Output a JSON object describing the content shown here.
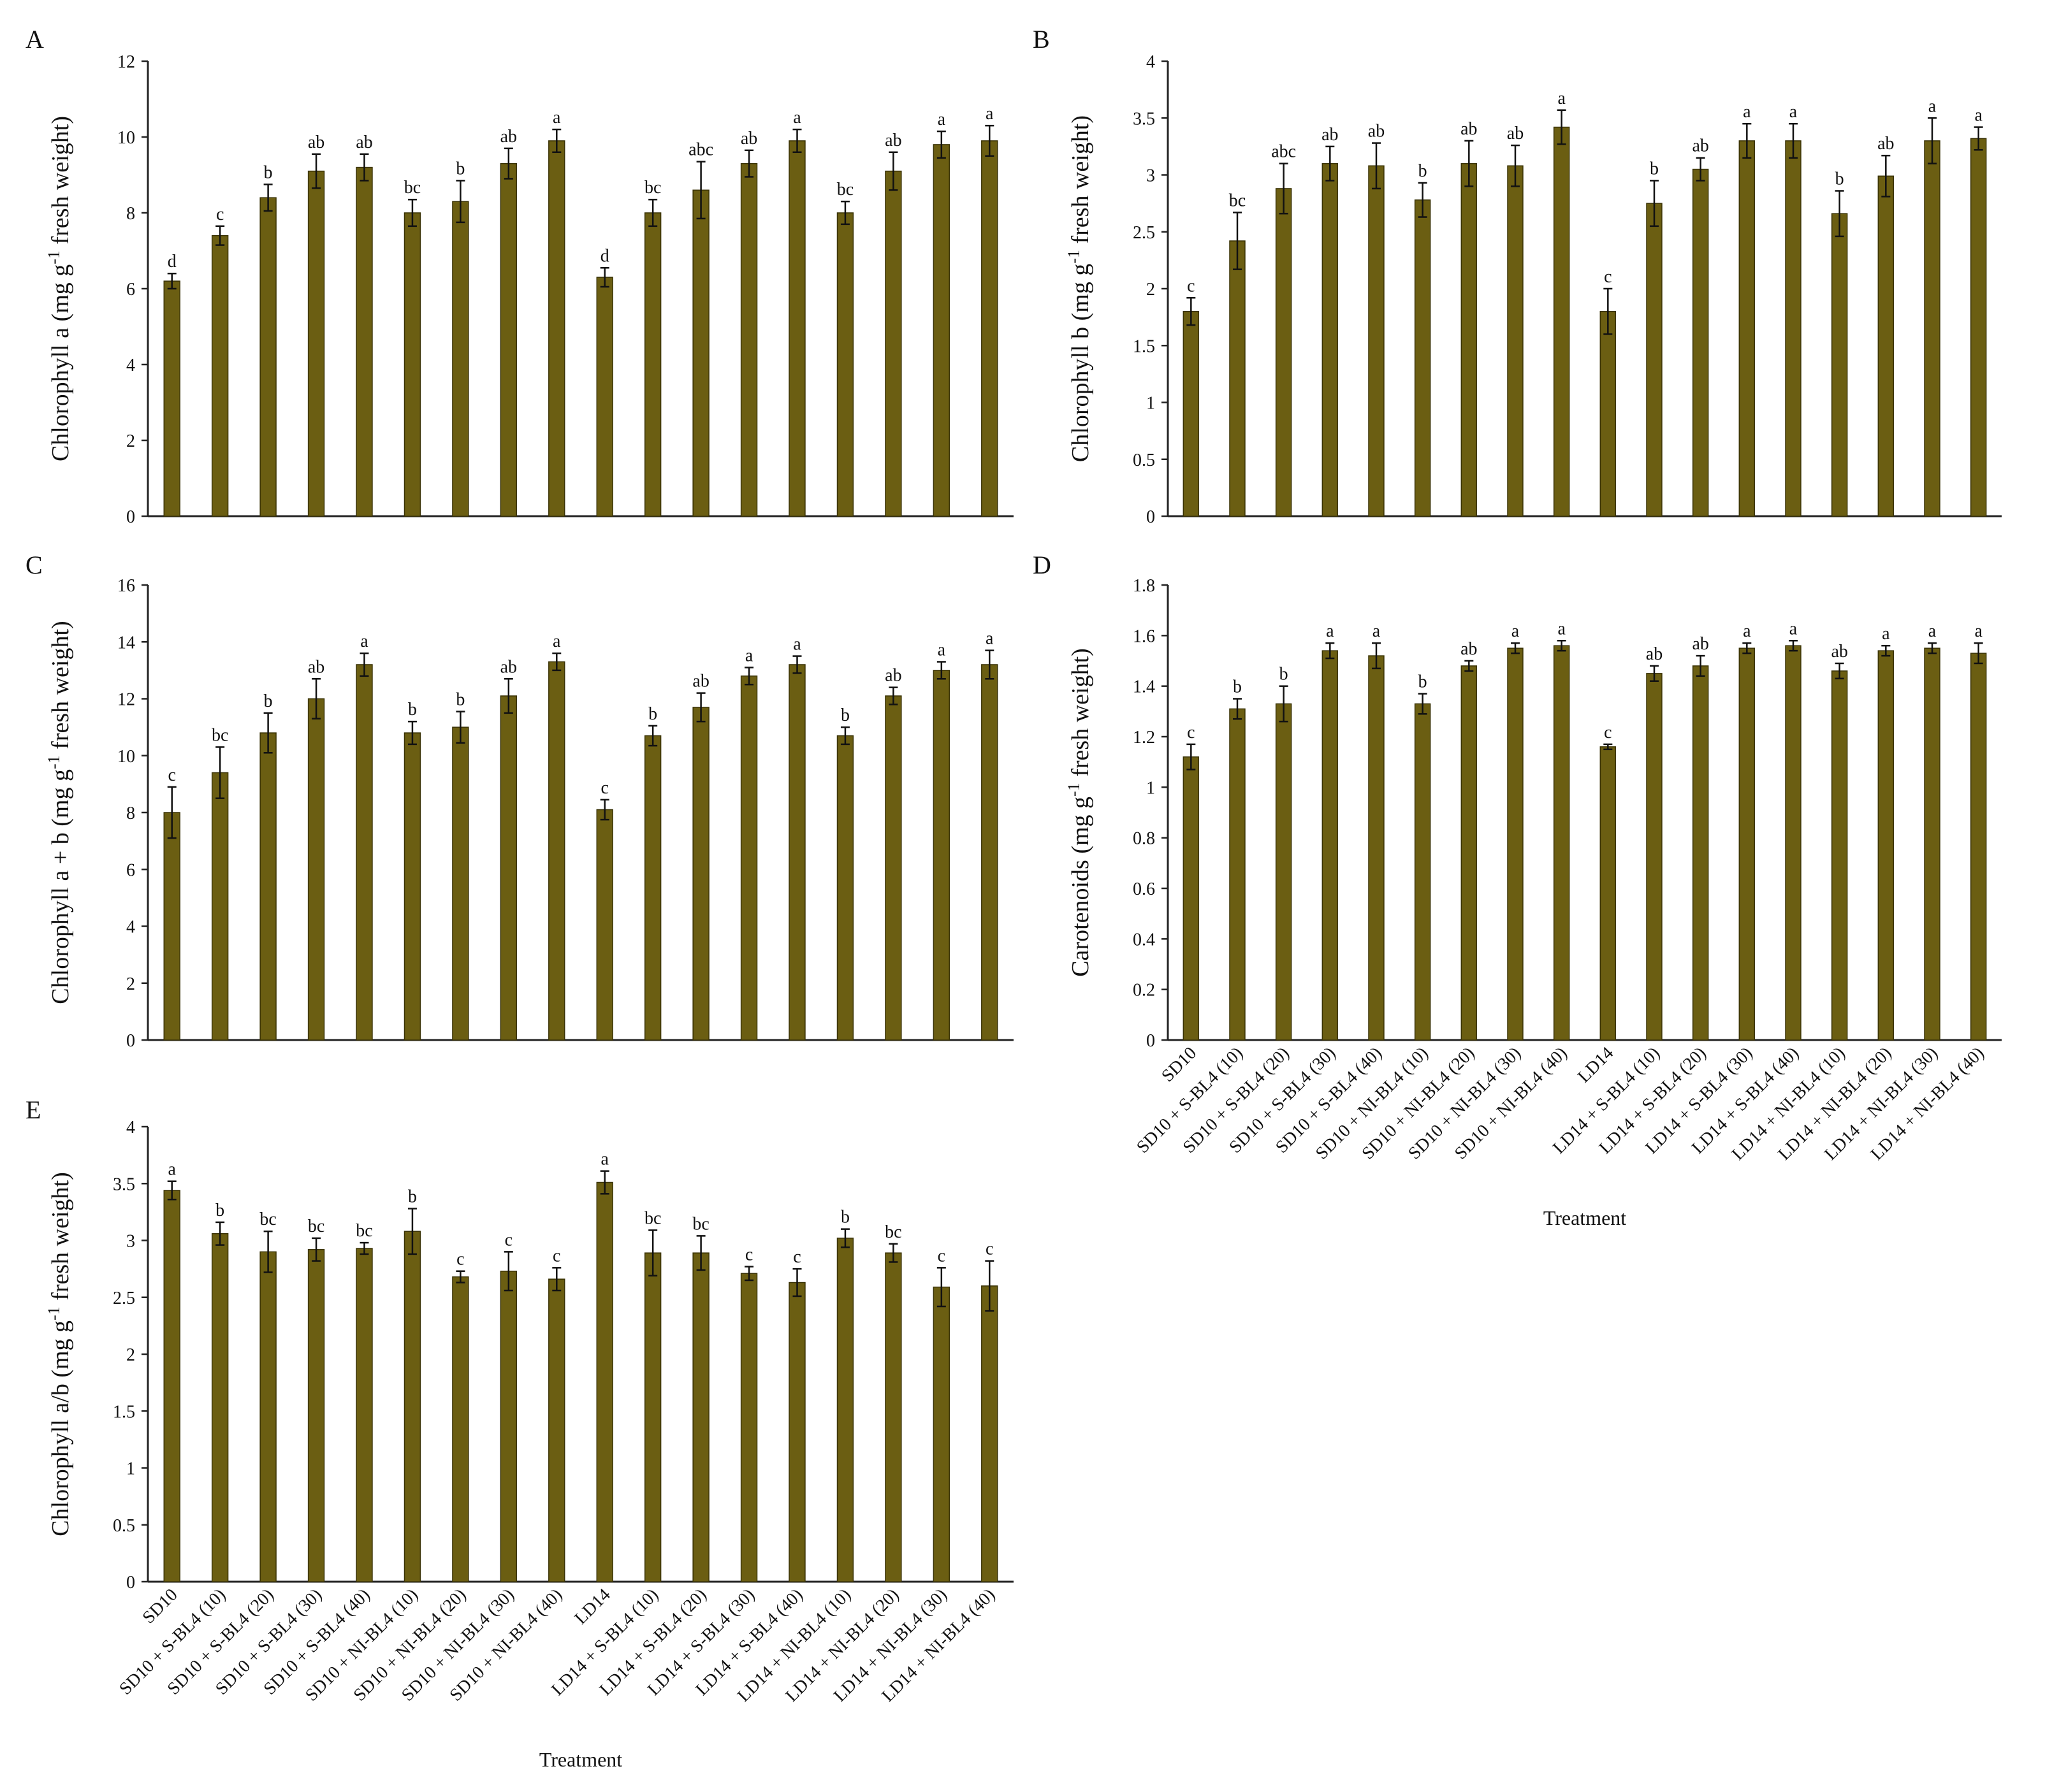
{
  "colors": {
    "bar": "#6b5e12",
    "bar_stroke": "#3a3306",
    "axis": "#222222"
  },
  "x_title": "Treatment",
  "categories": [
    "SD10",
    "SD10 + S-BL4 (10)",
    "SD10 + S-BL4 (20)",
    "SD10 + S-BL4 (30)",
    "SD10 + S-BL4 (40)",
    "SD10 + NI-BL4 (10)",
    "SD10 + NI-BL4 (20)",
    "SD10 + NI-BL4 (30)",
    "SD10 + NI-BL4 (40)",
    "LD14",
    "LD14 + S-BL4 (10)",
    "LD14 + S-BL4 (20)",
    "LD14 + S-BL4 (30)",
    "LD14 + S-BL4 (40)",
    "LD14 + NI-BL4 (10)",
    "LD14 + NI-BL4 (20)",
    "LD14 + NI-BL4 (30)",
    "LD14 + NI-BL4 (40)"
  ],
  "chart_data": [
    {
      "panel": "A",
      "type": "bar",
      "ylabel": "Chlorophyll a (mg g⁻¹ fresh weight)",
      "ylim": [
        0,
        12
      ],
      "yticks": [
        0,
        2,
        4,
        6,
        8,
        10,
        12
      ],
      "values": [
        6.2,
        7.4,
        8.4,
        9.1,
        9.2,
        8.0,
        8.3,
        9.3,
        9.9,
        6.3,
        8.0,
        8.6,
        9.3,
        9.9,
        8.0,
        9.1,
        9.8,
        9.9
      ],
      "errors": [
        0.2,
        0.25,
        0.35,
        0.45,
        0.35,
        0.35,
        0.55,
        0.4,
        0.3,
        0.25,
        0.35,
        0.75,
        0.35,
        0.3,
        0.3,
        0.5,
        0.35,
        0.4
      ],
      "labels": [
        "d",
        "c",
        "b",
        "ab",
        "ab",
        "bc",
        "b",
        "ab",
        "a",
        "d",
        "bc",
        "abc",
        "ab",
        "a",
        "bc",
        "ab",
        "a",
        "a"
      ]
    },
    {
      "panel": "B",
      "type": "bar",
      "ylabel": "Chlorophyll b (mg g⁻¹ fresh weight)",
      "ylim": [
        0,
        4
      ],
      "yticks": [
        0,
        0.5,
        1,
        1.5,
        2,
        2.5,
        3,
        3.5,
        4
      ],
      "values": [
        1.8,
        2.42,
        2.88,
        3.1,
        3.08,
        2.78,
        3.1,
        3.08,
        3.42,
        1.8,
        2.75,
        3.05,
        3.3,
        3.3,
        2.66,
        2.99,
        3.3,
        3.32
      ],
      "errors": [
        0.12,
        0.25,
        0.22,
        0.15,
        0.2,
        0.15,
        0.2,
        0.18,
        0.15,
        0.2,
        0.2,
        0.1,
        0.15,
        0.15,
        0.2,
        0.18,
        0.2,
        0.1
      ],
      "labels": [
        "c",
        "bc",
        "abc",
        "ab",
        "ab",
        "b",
        "ab",
        "ab",
        "a",
        "c",
        "b",
        "ab",
        "a",
        "a",
        "b",
        "ab",
        "a",
        "a"
      ]
    },
    {
      "panel": "C",
      "type": "bar",
      "ylabel": "Chlorophyll a + b (mg g⁻¹ fresh weight)",
      "ylim": [
        0,
        16
      ],
      "yticks": [
        0,
        2,
        4,
        6,
        8,
        10,
        12,
        14,
        16
      ],
      "values": [
        8.0,
        9.4,
        10.8,
        12.0,
        13.2,
        10.8,
        11.0,
        12.1,
        13.3,
        8.1,
        10.7,
        11.7,
        12.8,
        13.2,
        10.7,
        12.1,
        13.0,
        13.2
      ],
      "errors": [
        0.9,
        0.9,
        0.7,
        0.7,
        0.4,
        0.4,
        0.55,
        0.6,
        0.3,
        0.35,
        0.35,
        0.5,
        0.3,
        0.3,
        0.3,
        0.3,
        0.3,
        0.5
      ],
      "labels": [
        "c",
        "bc",
        "b",
        "ab",
        "a",
        "b",
        "b",
        "ab",
        "a",
        "c",
        "b",
        "ab",
        "a",
        "a",
        "b",
        "ab",
        "a",
        "a"
      ]
    },
    {
      "panel": "D",
      "type": "bar",
      "ylabel": "Carotenoids (mg g⁻¹ fresh weight)",
      "ylim": [
        0,
        1.8
      ],
      "yticks": [
        0,
        0.2,
        0.4,
        0.6,
        0.8,
        1,
        1.2,
        1.4,
        1.6,
        1.8
      ],
      "values": [
        1.12,
        1.31,
        1.33,
        1.54,
        1.52,
        1.33,
        1.48,
        1.55,
        1.56,
        1.16,
        1.45,
        1.48,
        1.55,
        1.56,
        1.46,
        1.54,
        1.55,
        1.53
      ],
      "errors": [
        0.05,
        0.04,
        0.07,
        0.03,
        0.05,
        0.04,
        0.02,
        0.02,
        0.02,
        0.01,
        0.03,
        0.04,
        0.02,
        0.02,
        0.03,
        0.02,
        0.02,
        0.04
      ],
      "labels": [
        "c",
        "b",
        "b",
        "a",
        "a",
        "b",
        "ab",
        "a",
        "a",
        "c",
        "ab",
        "ab",
        "a",
        "a",
        "ab",
        "a",
        "a",
        "a"
      ]
    },
    {
      "panel": "E",
      "type": "bar",
      "ylabel": "Chlorophyll a/b  (mg g⁻¹ fresh weight)",
      "ylim": [
        0,
        4
      ],
      "yticks": [
        0,
        0.5,
        1,
        1.5,
        2,
        2.5,
        3,
        3.5,
        4
      ],
      "values": [
        3.44,
        3.06,
        2.9,
        2.92,
        2.93,
        3.08,
        2.68,
        2.73,
        2.66,
        3.51,
        2.89,
        2.89,
        2.71,
        2.63,
        3.02,
        2.89,
        2.59,
        2.6
      ],
      "errors": [
        0.08,
        0.1,
        0.18,
        0.1,
        0.05,
        0.2,
        0.05,
        0.17,
        0.1,
        0.1,
        0.2,
        0.15,
        0.06,
        0.12,
        0.08,
        0.08,
        0.17,
        0.22
      ],
      "labels": [
        "a",
        "b",
        "bc",
        "bc",
        "bc",
        "b",
        "c",
        "c",
        "c",
        "a",
        "bc",
        "bc",
        "c",
        "c",
        "b",
        "bc",
        "c",
        "c"
      ]
    }
  ]
}
